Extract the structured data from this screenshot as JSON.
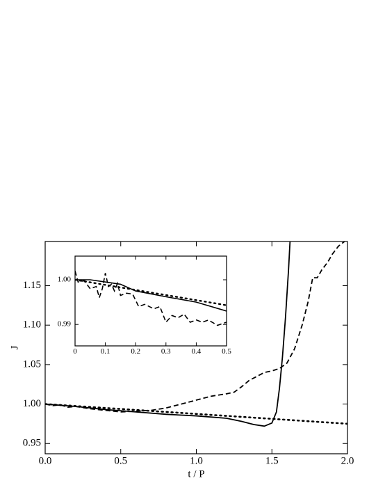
{
  "chart_data": [
    {
      "type": "line",
      "xlabel": "t / P",
      "ylabel": "J",
      "xlim": [
        0,
        2
      ],
      "ylim": [
        0.937,
        1.206
      ],
      "xticks": [
        {
          "value": 0,
          "label": "0.0"
        },
        0.5,
        {
          "value": 1,
          "label": "1.0"
        },
        1.5,
        {
          "value": 2,
          "label": "2.0"
        }
      ],
      "yticks": [
        0.95,
        {
          "value": 1,
          "label": "1.00"
        },
        1.05,
        {
          "value": 1.1,
          "label": "1.10"
        },
        1.15
      ],
      "series": [
        {
          "style": "solid",
          "color": "#000000",
          "x": [
            0,
            0.2,
            0.4,
            0.6,
            0.8,
            1.0,
            1.2,
            1.3,
            1.38,
            1.45,
            1.5,
            1.53,
            1.55,
            1.57,
            1.59,
            1.61,
            1.62
          ],
          "values": [
            1.0,
            0.997,
            0.993,
            0.99,
            0.987,
            0.985,
            0.982,
            0.978,
            0.974,
            0.972,
            0.976,
            0.99,
            1.02,
            1.06,
            1.11,
            1.17,
            1.206
          ]
        },
        {
          "style": "dashed",
          "color": "#000000",
          "x": [
            0,
            0.05,
            0.1,
            0.15,
            0.2,
            0.3,
            0.4,
            0.5,
            0.6,
            0.7,
            0.8,
            0.9,
            1.0,
            1.1,
            1.2,
            1.25,
            1.3,
            1.35,
            1.4,
            1.45,
            1.5,
            1.55,
            1.6,
            1.65,
            1.7,
            1.74,
            1.77,
            1.8,
            1.83,
            1.87,
            1.9,
            1.94,
            1.98
          ],
          "values": [
            1.0,
            0.998,
            0.999,
            0.996,
            0.997,
            0.994,
            0.992,
            0.99,
            0.991,
            0.992,
            0.995,
            1.0,
            1.005,
            1.01,
            1.013,
            1.015,
            1.022,
            1.03,
            1.035,
            1.04,
            1.042,
            1.045,
            1.052,
            1.07,
            1.1,
            1.13,
            1.16,
            1.16,
            1.17,
            1.18,
            1.19,
            1.2,
            1.206
          ]
        },
        {
          "style": "dotted",
          "color": "#000000",
          "x": [
            0,
            2
          ],
          "values": [
            1.0,
            0.975
          ]
        }
      ]
    },
    {
      "type": "line",
      "xlim": [
        0,
        0.5
      ],
      "ylim": [
        0.9852,
        1.0053
      ],
      "xticks": [
        0,
        0.1,
        0.2,
        0.3,
        0.4,
        0.5
      ],
      "yticks": [
        0.99,
        {
          "value": 1,
          "label": "1.00"
        }
      ],
      "series": [
        {
          "style": "solid",
          "color": "#000000",
          "x": [
            0,
            0.05,
            0.1,
            0.15,
            0.2,
            0.3,
            0.4,
            0.5
          ],
          "values": [
            1.0,
            1.0,
            0.9995,
            0.999,
            0.9975,
            0.9962,
            0.995,
            0.993
          ]
        },
        {
          "style": "dashed",
          "color": "#000000",
          "x": [
            0,
            0.01,
            0.03,
            0.05,
            0.07,
            0.08,
            0.09,
            0.1,
            0.11,
            0.12,
            0.13,
            0.14,
            0.15,
            0.17,
            0.19,
            0.21,
            0.23,
            0.26,
            0.28,
            0.3,
            0.32,
            0.34,
            0.36,
            0.38,
            0.4,
            0.42,
            0.44,
            0.47,
            0.5
          ],
          "values": [
            1.002,
            0.9995,
            0.9998,
            0.998,
            0.9985,
            0.996,
            0.998,
            1.0015,
            0.9985,
            0.999,
            0.9975,
            0.9992,
            0.9965,
            0.997,
            0.9968,
            0.994,
            0.9945,
            0.9935,
            0.994,
            0.9905,
            0.992,
            0.9915,
            0.9923,
            0.9905,
            0.991,
            0.9905,
            0.991,
            0.9898,
            0.9905
          ]
        },
        {
          "style": "dotted",
          "color": "#000000",
          "x": [
            0,
            0.5
          ],
          "values": [
            1.0,
            0.9943
          ]
        }
      ]
    }
  ]
}
